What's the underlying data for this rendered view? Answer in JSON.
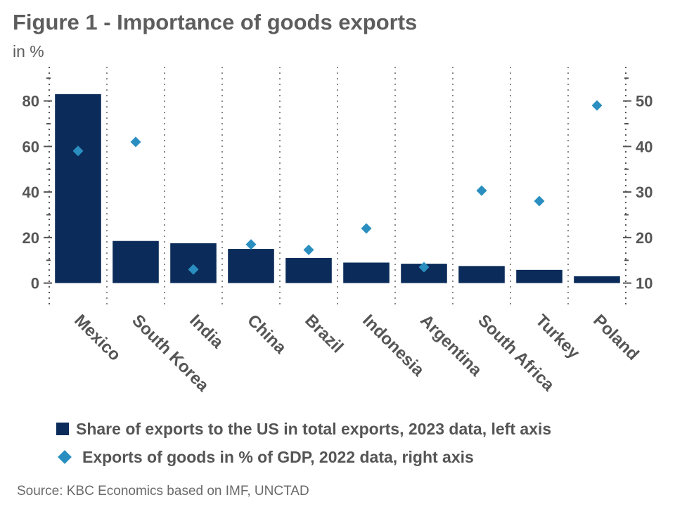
{
  "title": "Figure 1 - Importance of goods exports",
  "subtitle": "in %",
  "colors": {
    "bar": "#0b2c5a",
    "marker": "#2a8fc0",
    "grid": "#8a8a8a",
    "axis": "#555555"
  },
  "chart_data": {
    "type": "bar",
    "categories": [
      "Mexico",
      "South Korea",
      "India",
      "China",
      "Brazil",
      "Indonesia",
      "Argentina",
      "South Africa",
      "Turkey",
      "Poland"
    ],
    "series": [
      {
        "name": "Share of exports to the US in total exports, 2023 data, left axis",
        "type": "bar",
        "axis": "left",
        "values": [
          83,
          18.5,
          17.5,
          15,
          11,
          9,
          8.5,
          7.5,
          5.8,
          3
        ]
      },
      {
        "name": "Exports of goods in % of GDP, 2022 data, right axis",
        "type": "scatter",
        "marker": "diamond",
        "axis": "right",
        "values": [
          39,
          41,
          13,
          18.5,
          17.3,
          22,
          13.5,
          30.3,
          28,
          49
        ]
      }
    ],
    "left_axis": {
      "ticks": [
        0,
        20,
        40,
        60,
        80
      ],
      "range": [
        -10,
        95
      ]
    },
    "right_axis": {
      "ticks": [
        10,
        20,
        30,
        40,
        50
      ],
      "range": [
        5,
        57.5
      ]
    },
    "grid": "vertical-dotted",
    "legend": "bottom"
  },
  "source": "Source: KBC Economics based on IMF, UNCTAD"
}
